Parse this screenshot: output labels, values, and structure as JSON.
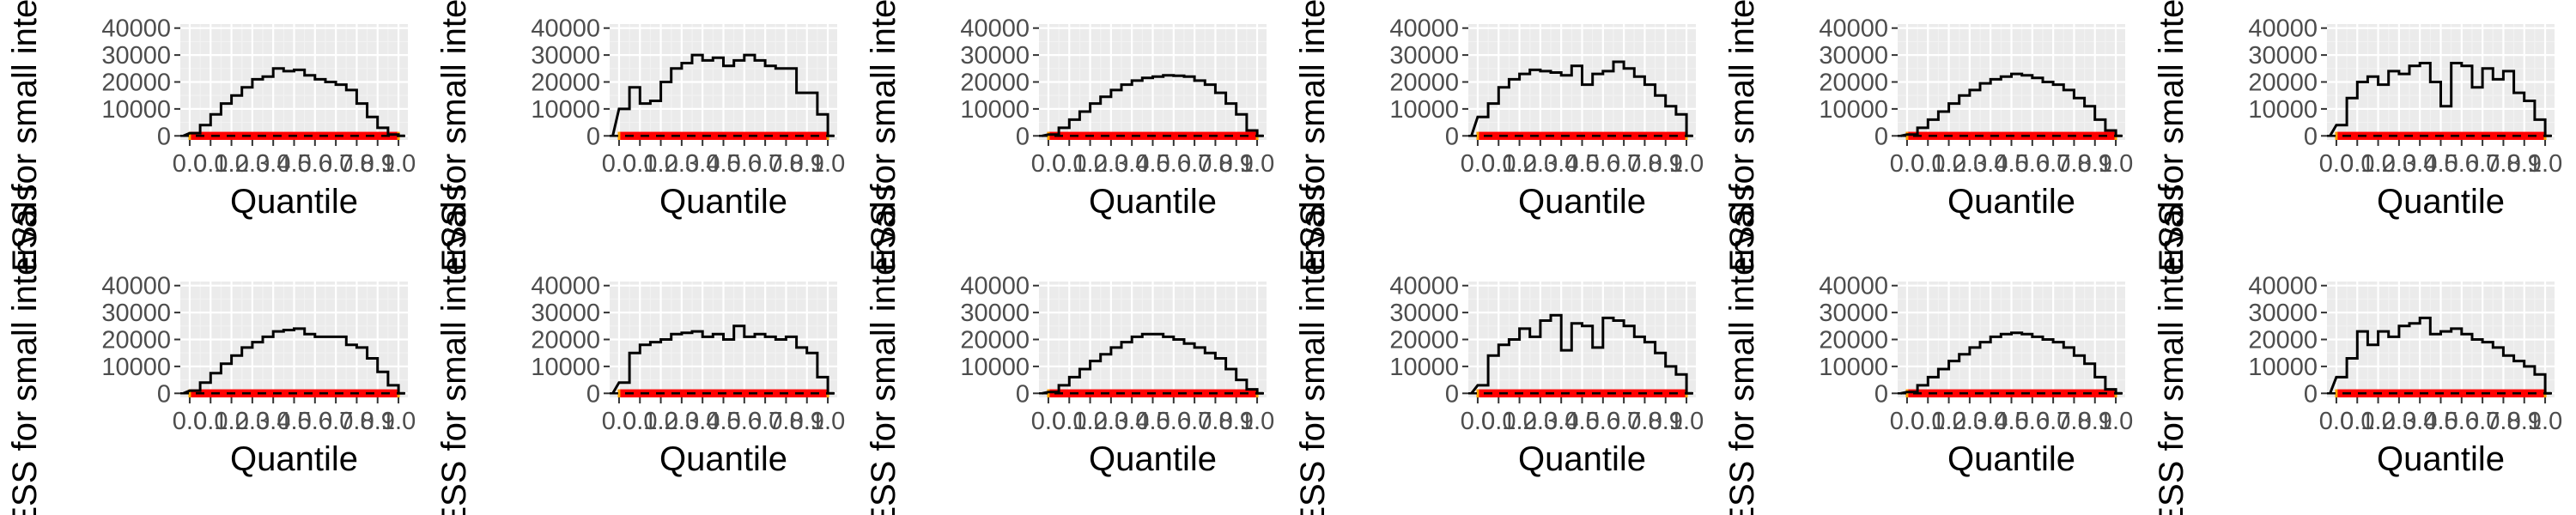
{
  "colors": {
    "panel_background": "#ebebeb",
    "grid_major": "#ffffff",
    "grid_minor": "#f2f2f2",
    "axis_text": "#4d4d4d",
    "title_text": "#000000",
    "line": "#000000",
    "band": "#ff0000",
    "band_edge": "#ffa500"
  },
  "chart_data": [
    {
      "type": "line",
      "xlabel": "Quantile",
      "ylabel": "ESS for small intervals",
      "xlim": [
        0,
        1
      ],
      "ylim": [
        0,
        40000
      ],
      "x_ticks": [
        "0.0",
        "0.1",
        "0.2",
        "0.3",
        "0.4",
        "0.5",
        "0.6",
        "0.7",
        "0.8",
        "0.9",
        "1.0"
      ],
      "y_ticks": [
        "0",
        "10000",
        "20000",
        "30000",
        "40000"
      ],
      "series": [
        {
          "values": [
            1000,
            4000,
            8000,
            12000,
            15000,
            18000,
            21000,
            22000,
            25000,
            24000,
            24500,
            22500,
            21000,
            20000,
            19000,
            17000,
            12000,
            7000,
            3000,
            500
          ]
        }
      ]
    },
    {
      "type": "line",
      "xlabel": "Quantile",
      "ylabel": "ESS for small intervals",
      "xlim": [
        0,
        1
      ],
      "ylim": [
        0,
        40000
      ],
      "x_ticks": [
        "0.0",
        "0.1",
        "0.2",
        "0.3",
        "0.4",
        "0.5",
        "0.6",
        "0.7",
        "0.8",
        "0.9",
        "1.0"
      ],
      "y_ticks": [
        "0",
        "10000",
        "20000",
        "30000",
        "40000"
      ],
      "series": [
        {
          "values": [
            10000,
            18000,
            12000,
            13000,
            20000,
            25000,
            27000,
            30000,
            28000,
            29000,
            26000,
            28000,
            30000,
            28000,
            26000,
            25000,
            25000,
            16000,
            16000,
            8000
          ]
        }
      ]
    },
    {
      "type": "line",
      "xlabel": "Quantile",
      "ylabel": "ESS for small intervals",
      "xlim": [
        0,
        1
      ],
      "ylim": [
        0,
        40000
      ],
      "x_ticks": [
        "0.0",
        "0.1",
        "0.2",
        "0.3",
        "0.4",
        "0.5",
        "0.6",
        "0.7",
        "0.8",
        "0.9",
        "1.0"
      ],
      "y_ticks": [
        "0",
        "10000",
        "20000",
        "30000",
        "40000"
      ],
      "series": [
        {
          "values": [
            500,
            3000,
            6000,
            9000,
            12000,
            14500,
            17000,
            19000,
            20500,
            21500,
            22000,
            22500,
            22300,
            22000,
            20500,
            19000,
            16000,
            12000,
            8000,
            2000
          ]
        }
      ]
    },
    {
      "type": "line",
      "xlabel": "Quantile",
      "ylabel": "ESS for small intervals",
      "xlim": [
        0,
        1
      ],
      "ylim": [
        0,
        40000
      ],
      "x_ticks": [
        "0.0",
        "0.1",
        "0.2",
        "0.3",
        "0.4",
        "0.5",
        "0.6",
        "0.7",
        "0.8",
        "0.9",
        "1.0"
      ],
      "y_ticks": [
        "0",
        "10000",
        "20000",
        "30000",
        "40000"
      ],
      "series": [
        {
          "values": [
            7000,
            12000,
            18000,
            21000,
            23000,
            24500,
            24000,
            23500,
            22500,
            26000,
            19000,
            23000,
            24000,
            27500,
            25000,
            22000,
            19000,
            15000,
            11000,
            8000
          ]
        }
      ]
    },
    {
      "type": "line",
      "xlabel": "Quantile",
      "ylabel": "ESS for small intervals",
      "xlim": [
        0,
        1
      ],
      "ylim": [
        0,
        40000
      ],
      "x_ticks": [
        "0.0",
        "0.1",
        "0.2",
        "0.3",
        "0.4",
        "0.5",
        "0.6",
        "0.7",
        "0.8",
        "0.9",
        "1.0"
      ],
      "y_ticks": [
        "0",
        "10000",
        "20000",
        "30000",
        "40000"
      ],
      "series": [
        {
          "values": [
            500,
            3000,
            6000,
            9000,
            12000,
            15000,
            17000,
            19500,
            21000,
            22000,
            23000,
            22500,
            21500,
            20000,
            19000,
            17000,
            14000,
            11000,
            6000,
            2000
          ]
        }
      ]
    },
    {
      "type": "line",
      "xlabel": "Quantile",
      "ylabel": "ESS for small intervals",
      "xlim": [
        0,
        1
      ],
      "ylim": [
        0,
        40000
      ],
      "x_ticks": [
        "0.0",
        "0.1",
        "0.2",
        "0.3",
        "0.4",
        "0.5",
        "0.6",
        "0.7",
        "0.8",
        "0.9",
        "1.0"
      ],
      "y_ticks": [
        "0",
        "10000",
        "20000",
        "30000",
        "40000"
      ],
      "series": [
        {
          "values": [
            4000,
            14000,
            20000,
            22000,
            19000,
            24000,
            23000,
            26000,
            27000,
            20000,
            11000,
            27000,
            26000,
            18000,
            25000,
            21000,
            24000,
            16000,
            13000,
            6000
          ]
        }
      ]
    },
    {
      "type": "line",
      "xlabel": "Quantile",
      "ylabel": "ESS for small intervals",
      "xlim": [
        0,
        1
      ],
      "ylim": [
        0,
        40000
      ],
      "x_ticks": [
        "0.0",
        "0.1",
        "0.2",
        "0.3",
        "0.4",
        "0.5",
        "0.6",
        "0.7",
        "0.8",
        "0.9",
        "1.0"
      ],
      "y_ticks": [
        "0",
        "10000",
        "20000",
        "30000",
        "40000"
      ],
      "series": [
        {
          "values": [
            1000,
            4000,
            7500,
            11000,
            14000,
            17000,
            19000,
            21000,
            23000,
            23500,
            24000,
            22000,
            21000,
            21000,
            21000,
            18000,
            17000,
            13000,
            8000,
            3000
          ]
        }
      ]
    },
    {
      "type": "line",
      "xlabel": "Quantile",
      "ylabel": "ESS for small intervals",
      "xlim": [
        0,
        1
      ],
      "ylim": [
        0,
        40000
      ],
      "x_ticks": [
        "0.0",
        "0.1",
        "0.2",
        "0.3",
        "0.4",
        "0.5",
        "0.6",
        "0.7",
        "0.8",
        "0.9",
        "1.0"
      ],
      "y_ticks": [
        "0",
        "10000",
        "20000",
        "30000",
        "40000"
      ],
      "series": [
        {
          "values": [
            4000,
            15000,
            18000,
            19000,
            20000,
            22000,
            22500,
            23000,
            21000,
            22000,
            20000,
            25000,
            21000,
            22000,
            21000,
            20000,
            21000,
            17000,
            15000,
            6000
          ]
        }
      ]
    },
    {
      "type": "line",
      "xlabel": "Quantile",
      "ylabel": "ESS for small intervals",
      "xlim": [
        0,
        1
      ],
      "ylim": [
        0,
        40000
      ],
      "x_ticks": [
        "0.0",
        "0.1",
        "0.2",
        "0.3",
        "0.4",
        "0.5",
        "0.6",
        "0.7",
        "0.8",
        "0.9",
        "1.0"
      ],
      "y_ticks": [
        "0",
        "10000",
        "20000",
        "30000",
        "40000"
      ],
      "series": [
        {
          "values": [
            500,
            3000,
            6000,
            9000,
            12000,
            14500,
            17000,
            19000,
            21000,
            22000,
            22000,
            21000,
            20000,
            18500,
            17000,
            15000,
            13000,
            9000,
            5000,
            1500
          ]
        }
      ]
    },
    {
      "type": "line",
      "xlabel": "Quantile",
      "ylabel": "ESS for small intervals",
      "xlim": [
        0,
        1
      ],
      "ylim": [
        0,
        40000
      ],
      "x_ticks": [
        "0.0",
        "0.1",
        "0.2",
        "0.3",
        "0.4",
        "0.5",
        "0.6",
        "0.7",
        "0.8",
        "0.9",
        "1.0"
      ],
      "y_ticks": [
        "0",
        "10000",
        "20000",
        "30000",
        "40000"
      ],
      "series": [
        {
          "values": [
            3000,
            14000,
            18000,
            20000,
            24000,
            21000,
            27000,
            29000,
            16000,
            26000,
            25000,
            17000,
            28000,
            27000,
            25000,
            21000,
            19000,
            15000,
            10000,
            7000
          ]
        }
      ]
    },
    {
      "type": "line",
      "xlabel": "Quantile",
      "ylabel": "ESS for small intervals",
      "xlim": [
        0,
        1
      ],
      "ylim": [
        0,
        40000
      ],
      "x_ticks": [
        "0.0",
        "0.1",
        "0.2",
        "0.3",
        "0.4",
        "0.5",
        "0.6",
        "0.7",
        "0.8",
        "0.9",
        "1.0"
      ],
      "y_ticks": [
        "0",
        "10000",
        "20000",
        "30000",
        "40000"
      ],
      "series": [
        {
          "values": [
            500,
            3000,
            6000,
            9000,
            12000,
            14500,
            17000,
            19000,
            21000,
            22000,
            22500,
            22000,
            21000,
            20000,
            19000,
            17000,
            14000,
            11000,
            6000,
            1500
          ]
        }
      ]
    },
    {
      "type": "line",
      "xlabel": "Quantile",
      "ylabel": "ESS for small intervals",
      "xlim": [
        0,
        1
      ],
      "ylim": [
        0,
        40000
      ],
      "x_ticks": [
        "0.0",
        "0.1",
        "0.2",
        "0.3",
        "0.4",
        "0.5",
        "0.6",
        "0.7",
        "0.8",
        "0.9",
        "1.0"
      ],
      "y_ticks": [
        "0",
        "10000",
        "20000",
        "30000",
        "40000"
      ],
      "series": [
        {
          "values": [
            6000,
            13000,
            23000,
            18000,
            23000,
            21000,
            25000,
            26000,
            28000,
            22000,
            23000,
            24000,
            22000,
            20000,
            19000,
            17000,
            14000,
            12000,
            10000,
            7000
          ]
        }
      ]
    }
  ]
}
